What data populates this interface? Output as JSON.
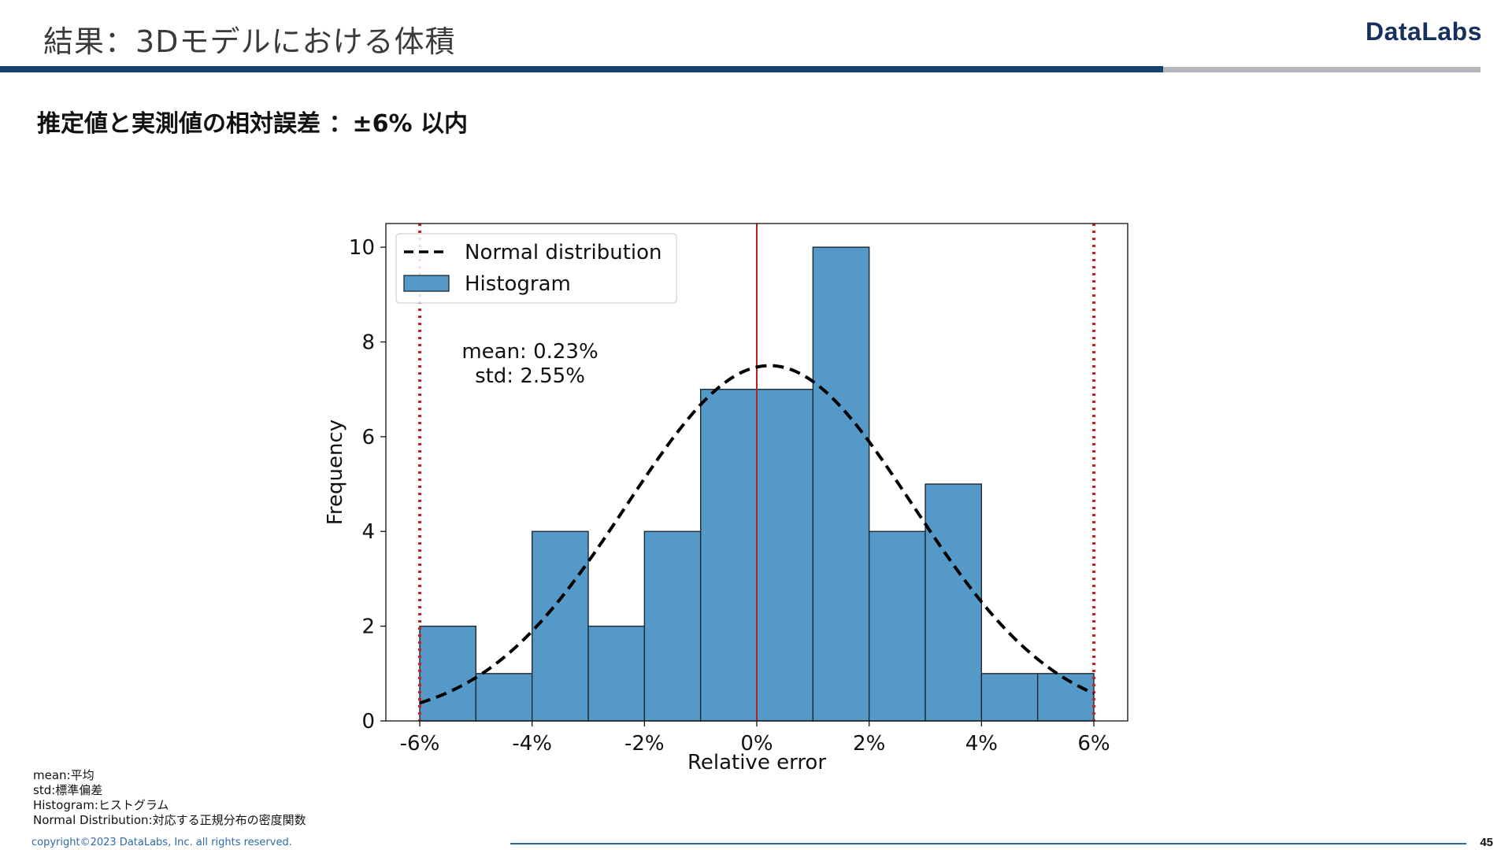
{
  "slide": {
    "title": "結果：3Dモデルにおける体積",
    "brand": "DataLabs",
    "subtitle": "推定値と実測値の相対誤差 ：±6% 以内",
    "notes": [
      "mean:平均",
      "std:標準偏差",
      "Histogram:ヒストグラム",
      "Normal Distribution:対応する正規分布の密度関数"
    ],
    "copyright": "copyright©2023 DataLabs, Inc. all rights reserved.",
    "page_number": "45"
  },
  "colors": {
    "bar_fill": "#5599c8",
    "bar_edge": "#1f2a33",
    "limit_line": "#d21f1f",
    "center_line": "#b22222",
    "curve": "#000000",
    "brand": "#15305f",
    "rule_dark": "#17406c",
    "rule_light": "#b3b6ba"
  },
  "chart_data": {
    "type": "bar",
    "xlabel": "Relative error",
    "ylabel": "Frequency",
    "xlim": [
      -6,
      6
    ],
    "ylim": [
      0,
      10.5
    ],
    "xticks": [
      -6,
      -4,
      -2,
      0,
      2,
      4,
      6
    ],
    "xtick_labels": [
      "-6%",
      "-4%",
      "-2%",
      "0%",
      "2%",
      "4%",
      "6%"
    ],
    "yticks": [
      0,
      2,
      4,
      6,
      8,
      10
    ],
    "ytick_labels": [
      "0",
      "2",
      "4",
      "6",
      "8",
      "10"
    ],
    "bins": [
      {
        "from": -6,
        "to": -5,
        "count": 2
      },
      {
        "from": -5,
        "to": -4,
        "count": 1
      },
      {
        "from": -4,
        "to": -3,
        "count": 4
      },
      {
        "from": -3,
        "to": -2,
        "count": 2
      },
      {
        "from": -2,
        "to": -1,
        "count": 4
      },
      {
        "from": -1,
        "to": 0,
        "count": 7
      },
      {
        "from": 0,
        "to": 1,
        "count": 7
      },
      {
        "from": 1,
        "to": 2,
        "count": 10
      },
      {
        "from": 2,
        "to": 3,
        "count": 4
      },
      {
        "from": 3,
        "to": 4,
        "count": 5
      },
      {
        "from": 4,
        "to": 5,
        "count": 1
      },
      {
        "from": 5,
        "to": 6,
        "count": 1
      }
    ],
    "normal_curve": {
      "mean": 0.23,
      "std": 2.55,
      "peak": 7.5
    },
    "reference_lines": [
      {
        "x": -6,
        "style": "dotted"
      },
      {
        "x": 0,
        "style": "solid"
      },
      {
        "x": 6,
        "style": "dotted"
      }
    ],
    "legend": {
      "placement": "top-left",
      "entries": [
        "Normal distribution",
        "Histogram"
      ]
    },
    "annotation": [
      "mean: 0.23%",
      "std: 2.55%"
    ],
    "grid": false
  }
}
